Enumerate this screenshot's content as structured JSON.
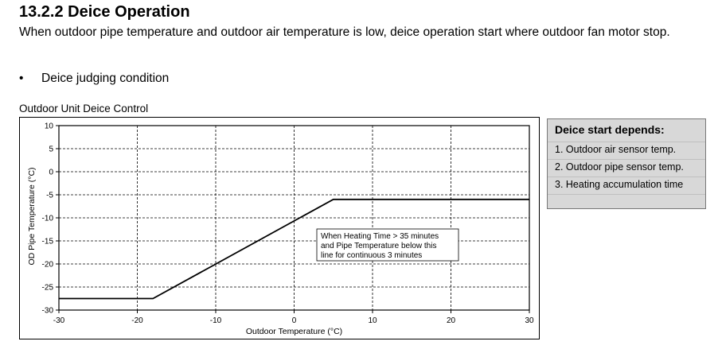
{
  "section": {
    "title": "13.2.2 Deice Operation",
    "intro": "When outdoor pipe temperature and outdoor air temperature is low, deice operation start where outdoor fan motor stop.",
    "bullet": "Deice judging condition"
  },
  "figure": {
    "caption": "Outdoor Unit Deice Control",
    "annotation_lines": [
      "When Heating Time > 35 minutes",
      "and Pipe Temperature below this",
      "line for continuous 3 minutes"
    ]
  },
  "sidebox": {
    "heading": "Deice start depends:",
    "items": [
      "1. Outdoor air sensor temp.",
      "2. Outdoor pipe sensor temp.",
      "3. Heating accumulation time"
    ]
  },
  "chart_data": {
    "type": "line",
    "xlabel": "Outdoor Temperature (°C)",
    "ylabel": "OD Pipe Temperature (°C)",
    "xlim": [
      -30,
      30
    ],
    "ylim": [
      -30,
      10
    ],
    "xticks": [
      -30,
      -20,
      -10,
      0,
      10,
      20,
      30
    ],
    "yticks": [
      10,
      5,
      0,
      -5,
      -10,
      -15,
      -20,
      -25,
      -30
    ],
    "grid": true,
    "series": [
      {
        "x": [
          -30,
          -18,
          5,
          30
        ],
        "y": [
          -27.5,
          -27.5,
          -6,
          -6
        ]
      }
    ]
  }
}
